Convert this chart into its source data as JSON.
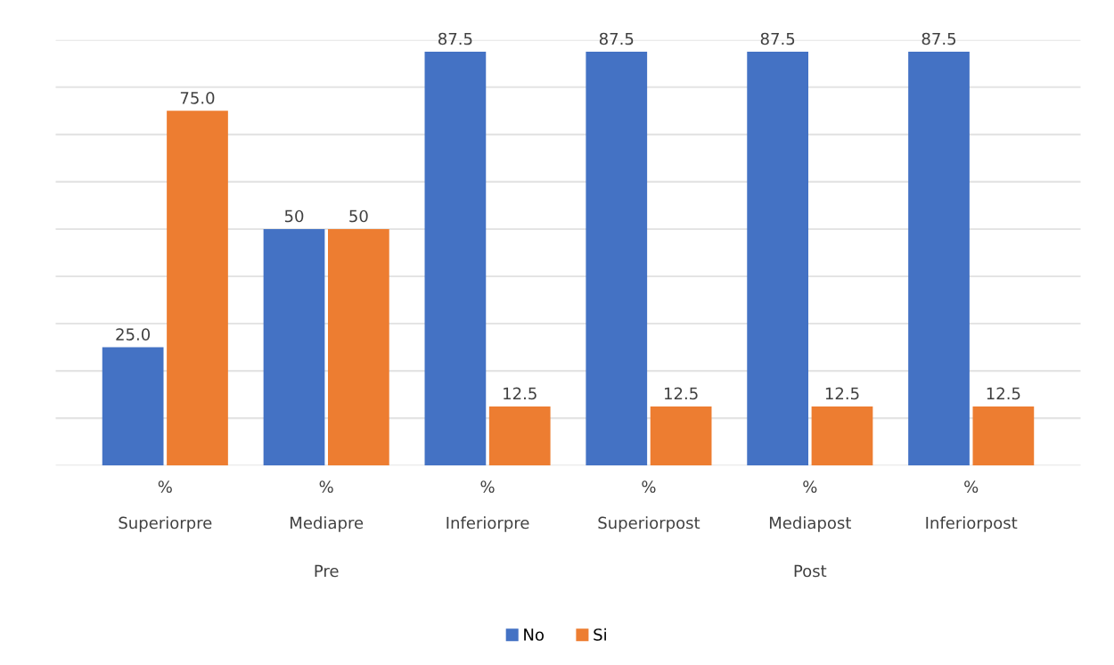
{
  "chart_data": {
    "type": "bar",
    "categories": [
      "%\n\nSuperiorpre",
      "%\n\nMediapre",
      "%\n\nInferiorpre",
      "%\n\nSuperiorpost",
      "%\n\nMediapost",
      "%\n\nInferiorpost"
    ],
    "series": [
      {
        "name": "No",
        "color": "#4472c4",
        "values": [
          25,
          50,
          87.5,
          87.5,
          87.5,
          87.5
        ],
        "value_labels": [
          "25.0",
          "50",
          "87.5",
          "87.5",
          "87.5",
          "87.5"
        ]
      },
      {
        "name": "Si",
        "color": "#ed7d31",
        "values": [
          75,
          50,
          12.5,
          12.5,
          12.5,
          12.5
        ],
        "value_labels": [
          "75.0",
          "50",
          "12.5",
          "12.5",
          "12.5",
          "12.5"
        ]
      }
    ],
    "annotations": [
      "Pre",
      "Post"
    ],
    "ylim": [
      0,
      90
    ],
    "yticks": [
      {
        "value": 0,
        "label": null
      },
      {
        "value": 10,
        "label": null
      },
      {
        "value": 20,
        "label": null
      },
      {
        "value": 30,
        "label": null
      },
      {
        "value": 40,
        "label": null
      },
      {
        "value": 50,
        "label": null
      },
      {
        "value": 60,
        "label": null
      },
      {
        "value": 70,
        "label": null
      },
      {
        "value": 80,
        "label": null
      },
      {
        "value": 90,
        "label": null
      }
    ],
    "tick_labels": "x",
    "grid": "y",
    "legend": "bottom"
  }
}
